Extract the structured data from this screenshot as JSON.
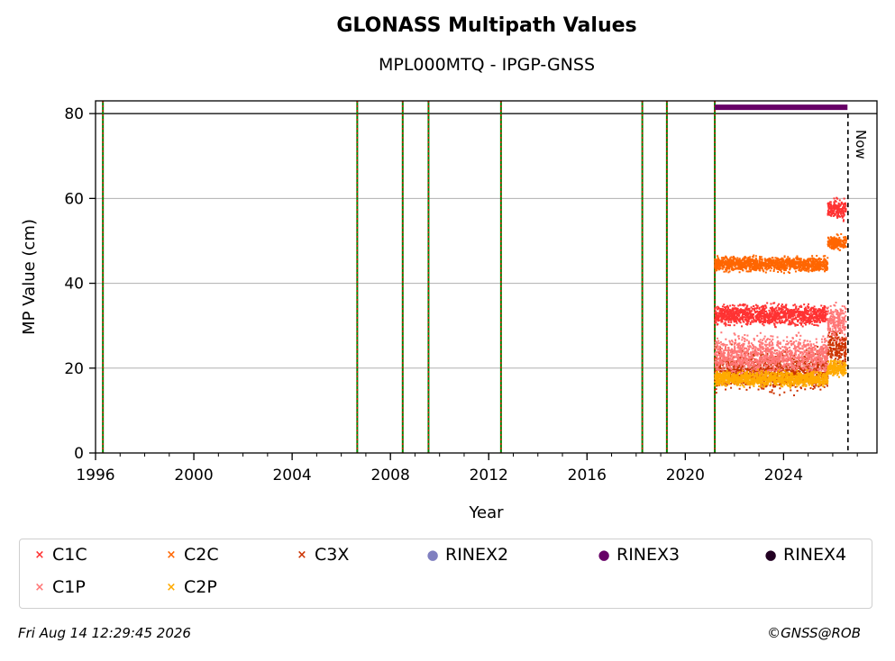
{
  "chart_data": {
    "type": "scatter",
    "title": "GLONASS Multipath Values",
    "subtitle": "MPL000MTQ - IPGP-GNSS",
    "xlabel": "Year",
    "ylabel": "MP Value (cm)",
    "xlim": [
      1996,
      2027.8
    ],
    "ylim": [
      0,
      83
    ],
    "x_ticks": [
      "1996",
      "2000",
      "2004",
      "2008",
      "2012",
      "2016",
      "2020",
      "2024"
    ],
    "y_ticks": [
      "0",
      "20",
      "40",
      "60",
      "80"
    ],
    "grid": "y-axis",
    "reference_line_y": 80,
    "now_label": "Now",
    "now_x": 2026.62,
    "event_lines_x": [
      1996.3,
      2006.65,
      2008.5,
      2009.55,
      2012.5,
      2018.25,
      2019.25,
      2021.2
    ],
    "file_coverage": [
      {
        "name": "RINEX3",
        "start": 2021.2,
        "end": 2026.6,
        "y": 81.5
      }
    ],
    "series": [
      {
        "name": "C1C",
        "color": "#ff3333",
        "segments": [
          {
            "x": [
              2021.2,
              2025.8
            ],
            "y": 32.5
          },
          {
            "x": [
              2025.8,
              2026.55
            ],
            "y": 57.5
          }
        ]
      },
      {
        "name": "C2C",
        "color": "#ff6600",
        "segments": [
          {
            "x": [
              2021.2,
              2025.8
            ],
            "y": 44.5
          },
          {
            "x": [
              2025.8,
              2026.55
            ],
            "y": 49.5
          }
        ]
      },
      {
        "name": "C3X",
        "color": "#cc3300",
        "segments": [
          {
            "x": [
              2021.2,
              2025.8
            ],
            "y": 19.5
          },
          {
            "x": [
              2025.8,
              2026.55
            ],
            "y": 25
          }
        ]
      },
      {
        "name": "C1P",
        "color": "#ff7777",
        "segments": [
          {
            "x": [
              2021.2,
              2025.8
            ],
            "y": 23
          },
          {
            "x": [
              2025.8,
              2026.55
            ],
            "y": 31
          }
        ]
      },
      {
        "name": "C2P",
        "color": "#ffaa00",
        "segments": [
          {
            "x": [
              2021.2,
              2025.8
            ],
            "y": 17.5
          },
          {
            "x": [
              2025.8,
              2026.55
            ],
            "y": 20
          }
        ]
      }
    ],
    "legend": [
      {
        "label": "C1C",
        "marker": "x",
        "color": "#ff3333"
      },
      {
        "label": "C2C",
        "marker": "x",
        "color": "#ff6600"
      },
      {
        "label": "C3X",
        "marker": "x",
        "color": "#cc3300"
      },
      {
        "label": "RINEX2",
        "marker": "dot",
        "color": "#8080c0"
      },
      {
        "label": "RINEX3",
        "marker": "dot",
        "color": "#660066"
      },
      {
        "label": "RINEX4",
        "marker": "dot",
        "color": "#220022"
      },
      {
        "label": "C1P",
        "marker": "x",
        "color": "#ff7777"
      },
      {
        "label": "C2P",
        "marker": "x",
        "color": "#ffaa00"
      }
    ]
  },
  "footer": {
    "timestamp": "Fri Aug 14 12:29:45 2026",
    "credit": "©GNSS@ROB"
  }
}
